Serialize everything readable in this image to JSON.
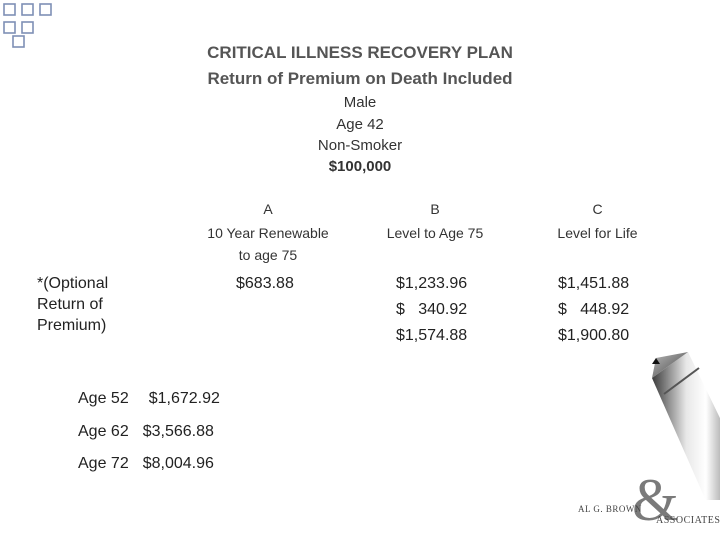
{
  "slide": {
    "title_line1": "CRITICAL ILLNESS RECOVERY PLAN",
    "title_line2": "Return of Premium on Death Included",
    "gender": "Male",
    "age": "Age 42",
    "smoker_status": "Non-Smoker",
    "coverage": "$100,000"
  },
  "columns": [
    {
      "letter": "A",
      "label": "10 Year Renewable\nto age 75",
      "amounts": [
        "$683.88"
      ]
    },
    {
      "letter": "B",
      "label": "Level to Age 75",
      "amounts": [
        "$1,233.96",
        "$   340.92",
        "$1,574.88"
      ]
    },
    {
      "letter": "C",
      "label": "Level for Life",
      "amounts": [
        "$1,451.88",
        "$   448.92",
        "$1,900.80"
      ]
    }
  ],
  "optional_label": "*(Optional\nReturn of\nPremium)",
  "age_schedule": [
    {
      "age": "Age 52",
      "amount": "$1,672.92"
    },
    {
      "age": "Age 62",
      "amount": "$3,566.88"
    },
    {
      "age": "Age 72",
      "amount": "$8,004.96"
    }
  ],
  "logo": {
    "line1": "AL G. BROWN",
    "ampersand": "&",
    "line2": "ASSOCIATES"
  },
  "colors": {
    "corner_square_border": "#7e8fb6",
    "title_gray": "#555555",
    "text": "#222222"
  }
}
